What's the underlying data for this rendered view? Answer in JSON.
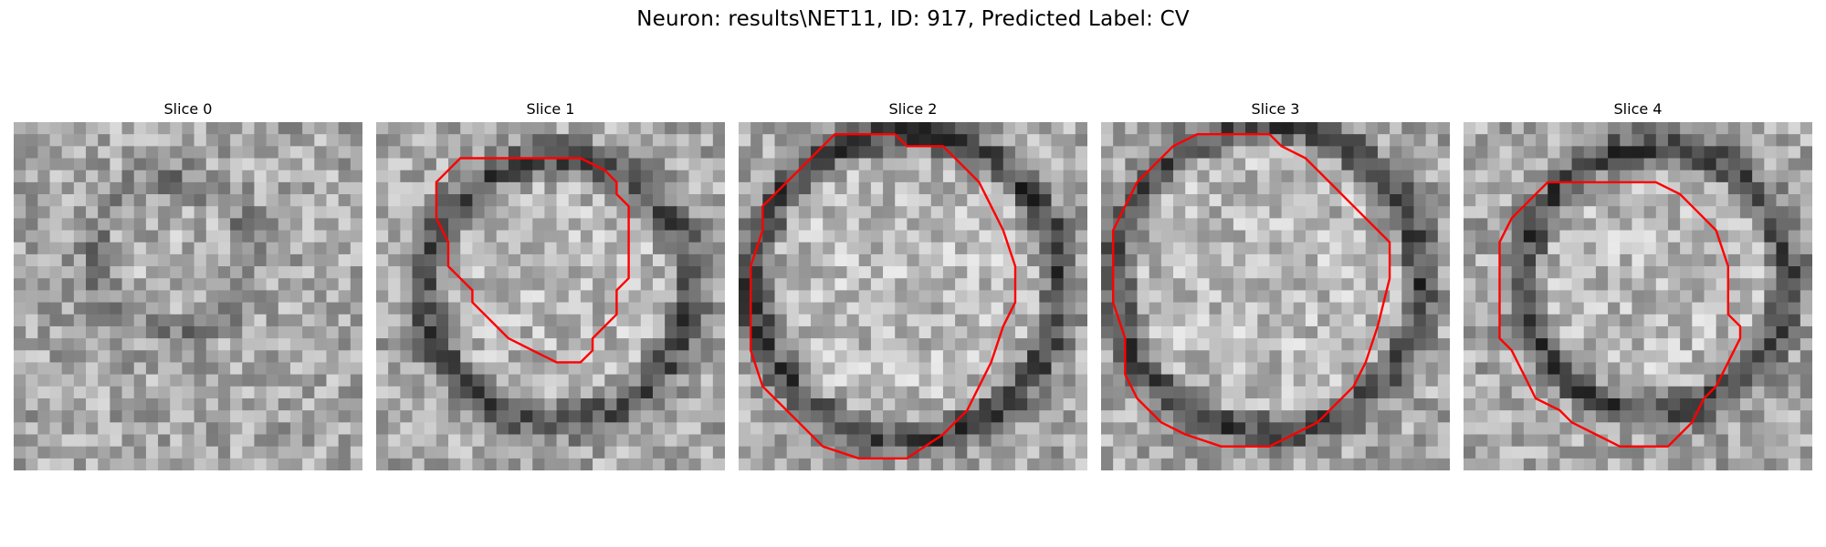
{
  "figure": {
    "title": "Neuron: results\\NET11, ID: 917, Predicted Label: CV"
  },
  "panels": [
    {
      "title": "Slice 0",
      "contour": null,
      "center": [
        0.45,
        0.38
      ],
      "radius": 0.22,
      "ring_strength": 0.35
    },
    {
      "title": "Slice 1",
      "contour": [
        [
          14,
          3
        ],
        [
          17,
          3
        ],
        [
          19,
          4
        ],
        [
          20,
          5
        ],
        [
          20,
          6
        ],
        [
          21,
          7
        ],
        [
          21,
          13
        ],
        [
          20,
          14
        ],
        [
          20,
          16
        ],
        [
          19,
          17
        ],
        [
          18,
          18
        ],
        [
          18,
          19
        ],
        [
          17,
          20
        ],
        [
          15,
          20
        ],
        [
          13,
          19
        ],
        [
          11,
          18
        ],
        [
          10,
          17
        ],
        [
          8,
          15
        ],
        [
          8,
          14
        ],
        [
          6,
          12
        ],
        [
          6,
          10
        ],
        [
          5,
          8
        ],
        [
          5,
          5
        ],
        [
          6,
          4
        ],
        [
          7,
          3
        ]
      ],
      "center": [
        0.52,
        0.48
      ],
      "radius": 0.38,
      "ring_strength": 0.8
    },
    {
      "title": "Slice 2",
      "contour": [
        [
          8,
          1
        ],
        [
          13,
          1
        ],
        [
          14,
          2
        ],
        [
          17,
          2
        ],
        [
          19,
          4
        ],
        [
          20,
          5
        ],
        [
          21,
          7
        ],
        [
          22,
          9
        ],
        [
          23,
          12
        ],
        [
          23,
          15
        ],
        [
          22,
          17
        ],
        [
          21,
          20
        ],
        [
          20,
          22
        ],
        [
          19,
          24
        ],
        [
          18,
          25
        ],
        [
          17,
          26
        ],
        [
          14,
          28
        ],
        [
          10,
          28
        ],
        [
          7,
          27
        ],
        [
          5,
          25
        ],
        [
          3,
          23
        ],
        [
          2,
          22
        ],
        [
          1,
          19
        ],
        [
          1,
          12
        ],
        [
          2,
          9
        ],
        [
          2,
          7
        ],
        [
          4,
          5
        ],
        [
          5,
          4
        ],
        [
          6,
          3
        ]
      ],
      "center": [
        0.48,
        0.47
      ],
      "radius": 0.44,
      "ring_strength": 0.9
    },
    {
      "title": "Slice 3",
      "contour": [
        [
          8,
          1
        ],
        [
          14,
          1
        ],
        [
          15,
          2
        ],
        [
          17,
          3
        ],
        [
          18,
          4
        ],
        [
          19,
          5
        ],
        [
          21,
          7
        ],
        [
          24,
          10
        ],
        [
          24,
          13
        ],
        [
          23,
          17
        ],
        [
          22,
          20
        ],
        [
          21,
          22
        ],
        [
          19,
          24
        ],
        [
          18,
          25
        ],
        [
          16,
          26
        ],
        [
          14,
          27
        ],
        [
          10,
          27
        ],
        [
          7,
          26
        ],
        [
          5,
          25
        ],
        [
          3,
          23
        ],
        [
          2,
          21
        ],
        [
          2,
          18
        ],
        [
          1,
          15
        ],
        [
          1,
          9
        ],
        [
          2,
          7
        ],
        [
          3,
          5
        ],
        [
          4,
          4
        ],
        [
          6,
          2
        ]
      ],
      "center": [
        0.48,
        0.45
      ],
      "radius": 0.44,
      "ring_strength": 0.85
    },
    {
      "title": "Slice 4",
      "contour": [
        [
          7,
          5
        ],
        [
          16,
          5
        ],
        [
          18,
          6
        ],
        [
          19,
          7
        ],
        [
          21,
          9
        ],
        [
          22,
          12
        ],
        [
          22,
          16
        ],
        [
          23,
          17
        ],
        [
          23,
          18
        ],
        [
          22,
          20
        ],
        [
          21,
          22
        ],
        [
          20,
          23
        ],
        [
          19,
          25
        ],
        [
          18,
          26
        ],
        [
          17,
          27
        ],
        [
          13,
          27
        ],
        [
          11,
          26
        ],
        [
          9,
          25
        ],
        [
          8,
          24
        ],
        [
          6,
          23
        ],
        [
          5,
          21
        ],
        [
          4,
          19
        ],
        [
          3,
          18
        ],
        [
          3,
          10
        ],
        [
          4,
          8
        ],
        [
          5,
          7
        ],
        [
          6,
          6
        ]
      ],
      "center": [
        0.55,
        0.45
      ],
      "radius": 0.38,
      "ring_strength": 0.85
    }
  ],
  "colors": {
    "contour": "#ff0000",
    "background": "#ffffff"
  }
}
